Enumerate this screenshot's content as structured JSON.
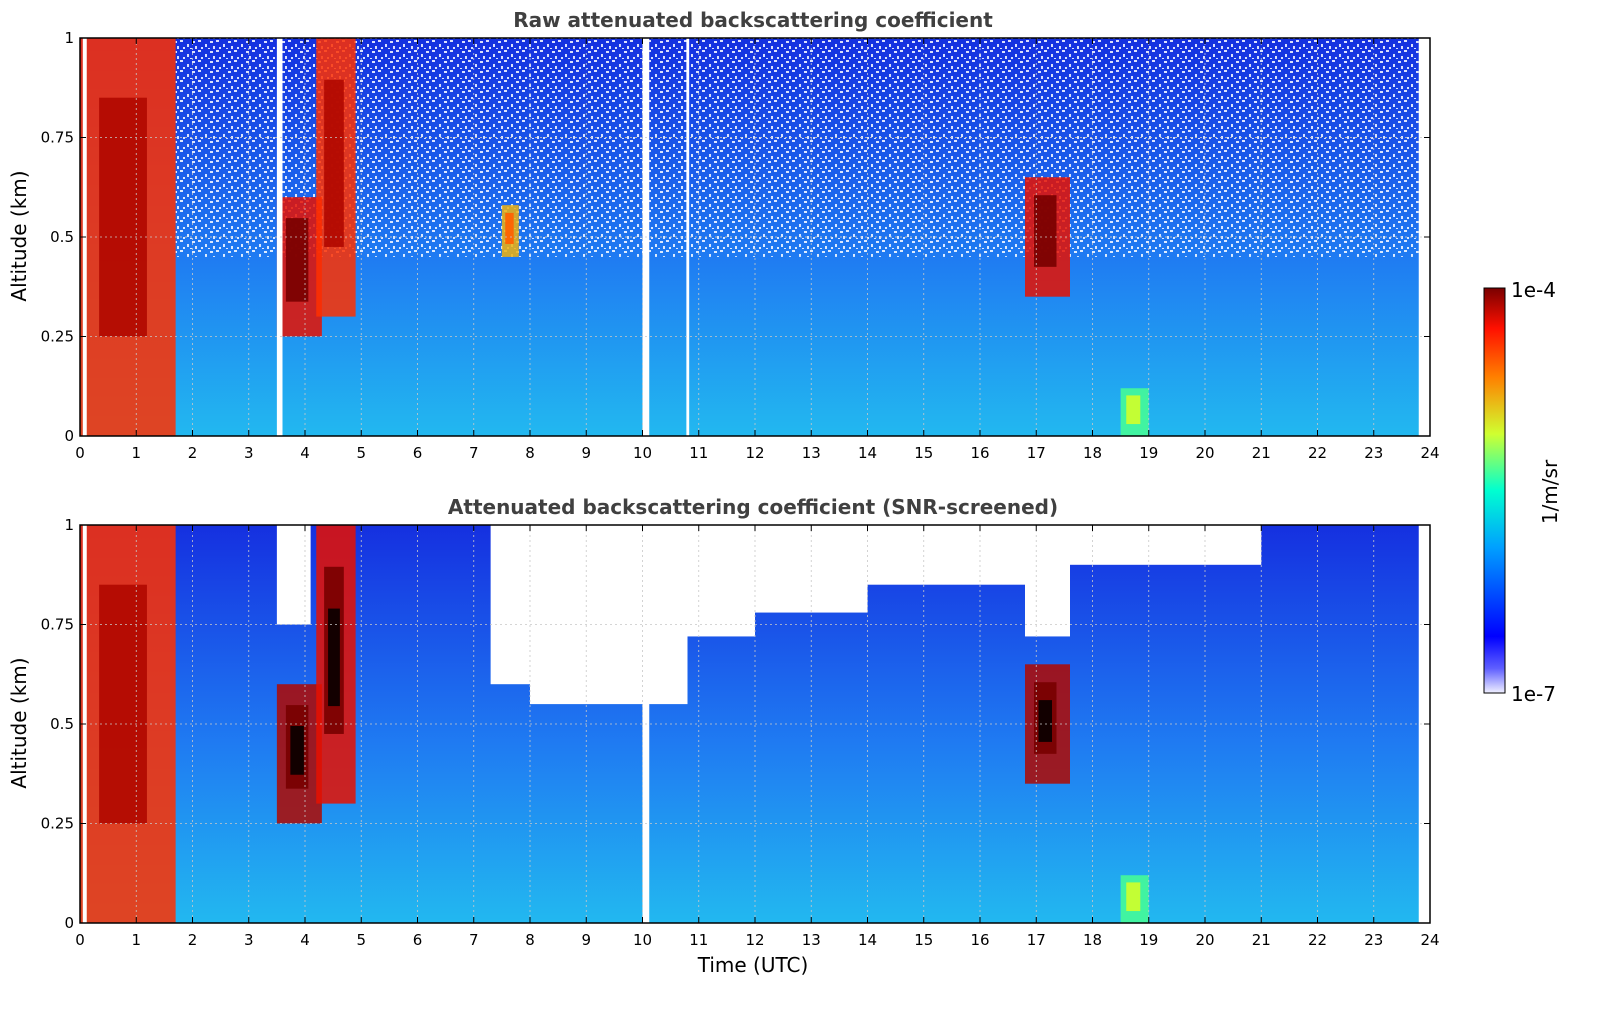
{
  "chart_data": [
    {
      "type": "heatmap",
      "title": "Raw attenuated backscattering coefficient",
      "xlabel": "",
      "ylabel": "Altitude (km)",
      "xlim": [
        0,
        24
      ],
      "ylim": [
        0,
        1
      ],
      "xticks": [
        "0",
        "1",
        "2",
        "3",
        "4",
        "5",
        "6",
        "7",
        "8",
        "9",
        "10",
        "11",
        "12",
        "13",
        "14",
        "15",
        "16",
        "17",
        "18",
        "19",
        "20",
        "21",
        "22",
        "23",
        "24"
      ],
      "yticks": [
        "0",
        "0.25",
        "0.5",
        "0.75",
        "1"
      ],
      "grid": true,
      "screened": false,
      "features": [
        {
          "x_start": 0.0,
          "x_end": 1.7,
          "alt_bottom": 0.0,
          "alt_top": 1.0,
          "level": 0.85
        },
        {
          "x_start": 3.5,
          "x_end": 4.3,
          "alt_bottom": 0.25,
          "alt_top": 0.6,
          "level": 0.9
        },
        {
          "x_start": 4.2,
          "x_end": 4.9,
          "alt_bottom": 0.3,
          "alt_top": 1.0,
          "level": 0.85
        },
        {
          "x_start": 7.5,
          "x_end": 7.8,
          "alt_bottom": 0.45,
          "alt_top": 0.58,
          "level": 0.7
        },
        {
          "x_start": 16.8,
          "x_end": 17.6,
          "alt_bottom": 0.35,
          "alt_top": 0.65,
          "level": 0.9
        },
        {
          "x_start": 18.5,
          "x_end": 19.0,
          "alt_bottom": 0.0,
          "alt_top": 0.12,
          "level": 0.5
        }
      ],
      "gaps": [
        [
          0.05,
          0.12
        ],
        [
          3.5,
          3.6
        ],
        [
          10.0,
          10.12
        ],
        [
          10.78,
          10.83
        ]
      ]
    },
    {
      "type": "heatmap",
      "title": "Attenuated backscattering coefficient (SNR-screened)",
      "xlabel": "Time (UTC)",
      "ylabel": "Altitude (km)",
      "xlim": [
        0,
        24
      ],
      "ylim": [
        0,
        1
      ],
      "xticks": [
        "0",
        "1",
        "2",
        "3",
        "4",
        "5",
        "6",
        "7",
        "8",
        "9",
        "10",
        "11",
        "12",
        "13",
        "14",
        "15",
        "16",
        "17",
        "18",
        "19",
        "20",
        "21",
        "22",
        "23",
        "24"
      ],
      "yticks": [
        "0",
        "0.25",
        "0.5",
        "0.75",
        "1"
      ],
      "grid": true,
      "screened": true,
      "features": [
        {
          "x_start": 0.0,
          "x_end": 1.7,
          "alt_bottom": 0.0,
          "alt_top": 1.0,
          "level": 0.85
        },
        {
          "x_start": 3.5,
          "x_end": 4.3,
          "alt_bottom": 0.25,
          "alt_top": 0.6,
          "level": 0.95
        },
        {
          "x_start": 4.2,
          "x_end": 4.9,
          "alt_bottom": 0.3,
          "alt_top": 1.0,
          "level": 0.9
        },
        {
          "x_start": 16.8,
          "x_end": 17.6,
          "alt_bottom": 0.35,
          "alt_top": 0.65,
          "level": 0.95
        },
        {
          "x_start": 18.5,
          "x_end": 19.0,
          "alt_bottom": 0.0,
          "alt_top": 0.12,
          "level": 0.5
        }
      ],
      "masked_above_km": [
        {
          "x_start": 3.5,
          "x_end": 4.1,
          "alt": 0.75
        },
        {
          "x_start": 7.3,
          "x_end": 8.0,
          "alt": 0.6
        },
        {
          "x_start": 8.0,
          "x_end": 10.8,
          "alt": 0.55
        },
        {
          "x_start": 10.8,
          "x_end": 12.0,
          "alt": 0.72
        },
        {
          "x_start": 12.0,
          "x_end": 14.0,
          "alt": 0.78
        },
        {
          "x_start": 14.0,
          "x_end": 16.8,
          "alt": 0.85
        },
        {
          "x_start": 16.8,
          "x_end": 17.6,
          "alt": 0.72
        },
        {
          "x_start": 17.6,
          "x_end": 21.0,
          "alt": 0.9
        }
      ],
      "gaps": [
        [
          0.05,
          0.12
        ],
        [
          10.0,
          10.12
        ]
      ]
    }
  ],
  "colorbar": {
    "label": "1/m/sr",
    "max_label": "1e-4",
    "min_label": "1e-7",
    "colormap": "jet"
  }
}
